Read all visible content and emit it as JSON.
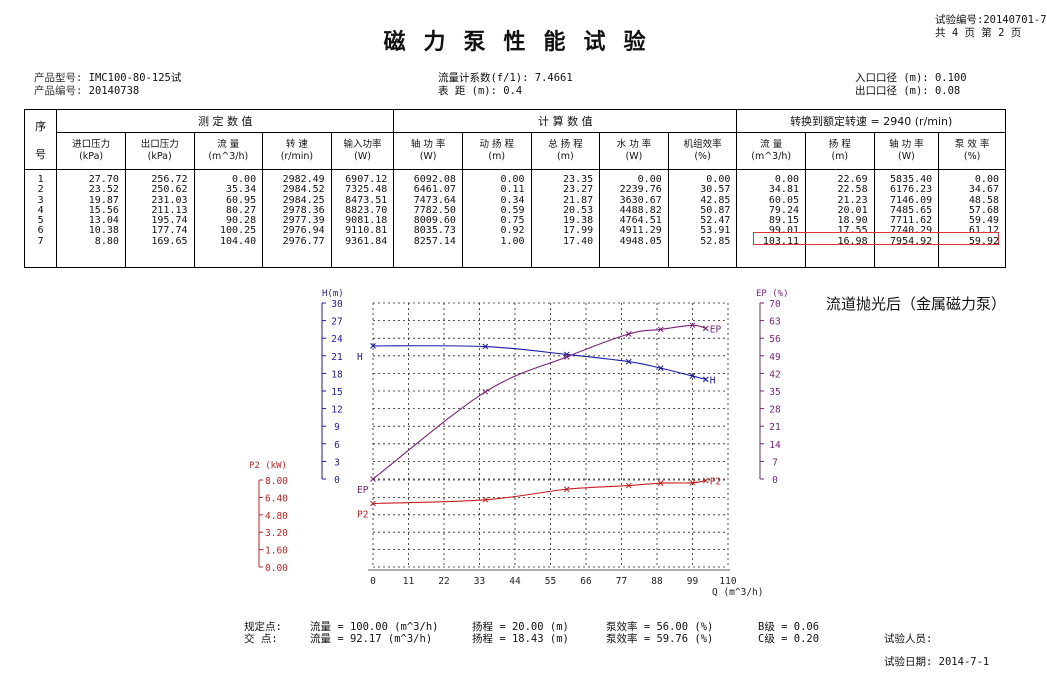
{
  "header": {
    "title": "磁力泵性能试验",
    "test_no_label": "试验编号:",
    "test_no": "20140701-7",
    "pages": "共 4 页  第 2 页"
  },
  "info": {
    "model_label": "产品型号:",
    "model": "IMC100-80-125试",
    "serial_label": "产品编号:",
    "serial": "20140738",
    "flow_coef_label": "流量计系数(f/1):",
    "flow_coef": "7.4661",
    "gauge_label": "表    距  (m):",
    "gauge": "0.4",
    "inlet_label": "入口口径  (m):",
    "inlet": "0.100",
    "outlet_label": "出口口径  (m):",
    "outlet": "0.08"
  },
  "table": {
    "groups": {
      "no": "序",
      "measured": "测    定    数    值",
      "calc": "计    算    数    值",
      "converted": "转换到额定转速 = 2940 (r/min)"
    },
    "no_sub": "号",
    "headers": [
      {
        "name": "进口压力",
        "unit": "(kPa)"
      },
      {
        "name": "出口压力",
        "unit": "(kPa)"
      },
      {
        "name": "流    量",
        "unit": "(m^3/h)"
      },
      {
        "name": "转    速",
        "unit": "(r/min)"
      },
      {
        "name": "输入功率",
        "unit": "(W)"
      },
      {
        "name": "轴 功 率",
        "unit": "(W)"
      },
      {
        "name": "动 扬 程",
        "unit": "(m)"
      },
      {
        "name": "总 扬 程",
        "unit": "(m)"
      },
      {
        "name": "水 功 率",
        "unit": "(W)"
      },
      {
        "name": "机组效率",
        "unit": "(%)"
      },
      {
        "name": "流    量",
        "unit": "(m^3/h)"
      },
      {
        "name": "扬    程",
        "unit": "(m)"
      },
      {
        "name": "轴 功 率",
        "unit": "(W)"
      },
      {
        "name": "泵 效 率",
        "unit": "(%)"
      }
    ],
    "rows": [
      [
        "1",
        "27.70",
        "256.72",
        "0.00",
        "2982.49",
        "6907.12",
        "6092.08",
        "0.00",
        "23.35",
        "0.00",
        "0.00",
        "0.00",
        "22.69",
        "5835.40",
        "0.00"
      ],
      [
        "2",
        "23.52",
        "250.62",
        "35.34",
        "2984.52",
        "7325.48",
        "6461.07",
        "0.11",
        "23.27",
        "2239.76",
        "30.57",
        "34.81",
        "22.58",
        "6176.23",
        "34.67"
      ],
      [
        "3",
        "19.87",
        "231.03",
        "60.95",
        "2984.25",
        "8473.51",
        "7473.64",
        "0.34",
        "21.87",
        "3630.67",
        "42.85",
        "60.05",
        "21.23",
        "7146.09",
        "48.58"
      ],
      [
        "4",
        "15.56",
        "211.13",
        "80.27",
        "2978.36",
        "8823.70",
        "7782.50",
        "0.59",
        "20.53",
        "4488.82",
        "50.87",
        "79.24",
        "20.01",
        "7485.65",
        "57.68"
      ],
      [
        "5",
        "13.04",
        "195.74",
        "90.28",
        "2977.39",
        "9081.18",
        "8009.60",
        "0.75",
        "19.38",
        "4764.51",
        "52.47",
        "89.15",
        "18.90",
        "7711.62",
        "59.49"
      ],
      [
        "6",
        "10.38",
        "177.74",
        "100.25",
        "2976.94",
        "9110.81",
        "8035.73",
        "0.92",
        "17.99",
        "4911.29",
        "53.91",
        "99.01",
        "17.55",
        "7740.29",
        "61.12"
      ],
      [
        "7",
        "8.80",
        "169.65",
        "104.40",
        "2976.77",
        "9361.84",
        "8257.14",
        "1.00",
        "17.40",
        "4948.05",
        "52.85",
        "103.11",
        "16.98",
        "7954.92",
        "59.92"
      ]
    ]
  },
  "chart_data": {
    "type": "line",
    "title": "流道抛光后（金属磁力泵）",
    "xlabel": "Q (m^3/h)",
    "xlim": [
      0,
      110
    ],
    "xticks": [
      0,
      11,
      22,
      33,
      44,
      55,
      66,
      77,
      88,
      99,
      110
    ],
    "axes": {
      "H": {
        "label": "H(m)",
        "lim": [
          0,
          30
        ],
        "ticks": [
          0,
          3,
          6,
          9,
          12,
          15,
          18,
          21,
          24,
          27,
          30
        ],
        "color": "#1a1aa8"
      },
      "EP": {
        "label": "EP (%)",
        "lim": [
          0,
          70
        ],
        "ticks": [
          0,
          7,
          14,
          21,
          28,
          35,
          42,
          49,
          56,
          63,
          70
        ],
        "color": "#7a1f7a"
      },
      "P2": {
        "label": "P2 (kW)",
        "lim": [
          0,
          8
        ],
        "ticks": [
          "0.00",
          "1.60",
          "3.20",
          "4.80",
          "6.40",
          "8.00"
        ],
        "color": "#c62020"
      }
    },
    "series": [
      {
        "name": "H",
        "axis": "H",
        "x": [
          0.0,
          34.81,
          60.05,
          79.24,
          89.15,
          99.01,
          103.11
        ],
        "y": [
          22.69,
          22.58,
          21.23,
          20.01,
          18.9,
          17.55,
          16.98
        ]
      },
      {
        "name": "EP",
        "axis": "EP",
        "x": [
          0.0,
          34.81,
          60.05,
          79.24,
          89.15,
          99.01,
          103.11
        ],
        "y": [
          0.0,
          34.67,
          48.58,
          57.68,
          59.49,
          61.12,
          59.92
        ]
      },
      {
        "name": "P2",
        "axis": "P2",
        "x": [
          0.0,
          34.81,
          60.05,
          79.24,
          89.15,
          99.01,
          103.11
        ],
        "y": [
          5.84,
          6.18,
          7.15,
          7.49,
          7.71,
          7.74,
          7.95
        ]
      }
    ]
  },
  "footer": {
    "spec_label": "规定点:",
    "spec_flow": "流量 = 100.00 (m^3/h)",
    "spec_head": "扬程 = 20.00 (m)",
    "spec_eff": "泵效率 = 56.00 (%)",
    "spec_grade": "B级 = 0.06",
    "cross_label": "交  点:",
    "cross_flow": "流量 = 92.17 (m^3/h)",
    "cross_head": "扬程 = 18.43 (m)",
    "cross_eff": "泵效率 = 59.76 (%)",
    "cross_grade": "C级 = 0.20",
    "tester_label": "试验人员:",
    "date_label": "试验日期:",
    "date": "2014-7-1"
  }
}
